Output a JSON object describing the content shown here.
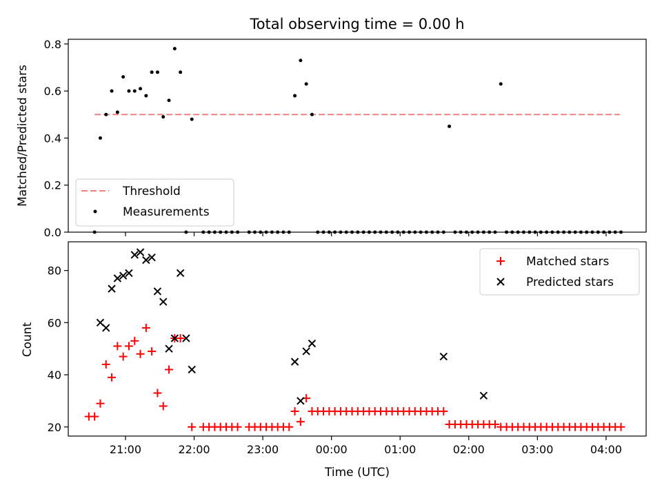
{
  "chart_data": [
    {
      "type": "scatter",
      "title": "Total observing time = 0.00 h",
      "xlabel": "",
      "ylabel": "Matched/Predicted stars",
      "xlim": [
        "20:10",
        "04:35"
      ],
      "ylim": [
        0,
        0.82
      ],
      "yticks": [
        0.0,
        0.2,
        0.4,
        0.6,
        0.8
      ],
      "ytick_labels": [
        "0.0",
        "0.2",
        "0.4",
        "0.6",
        "0.8"
      ],
      "legend": {
        "placement": "lower-left",
        "entries": [
          {
            "label": "Threshold",
            "style": "dashed-line",
            "color": "#f08080"
          },
          {
            "label": "Measurements",
            "style": "dot",
            "color": "#000000"
          }
        ]
      },
      "threshold": {
        "value": 0.5,
        "x_start": "20:33",
        "x_end": "04:12"
      },
      "series": [
        {
          "name": "Measurements",
          "color": "#000000",
          "x": [
            "20:33",
            "20:38",
            "20:43",
            "20:48",
            "20:53",
            "20:58",
            "21:03",
            "21:08",
            "21:13",
            "21:18",
            "21:23",
            "21:28",
            "21:33",
            "21:38",
            "21:43",
            "21:48",
            "21:53",
            "21:58",
            "22:08",
            "22:13",
            "22:18",
            "22:23",
            "22:28",
            "22:33",
            "22:38",
            "22:48",
            "22:53",
            "22:58",
            "23:03",
            "23:08",
            "23:13",
            "23:18",
            "23:23",
            "23:28",
            "23:33",
            "23:38",
            "23:43",
            "23:48",
            "23:53",
            "23:58",
            "00:03",
            "00:08",
            "00:13",
            "00:18",
            "00:23",
            "00:28",
            "00:33",
            "00:38",
            "00:43",
            "00:48",
            "00:53",
            "00:58",
            "01:03",
            "01:08",
            "01:13",
            "01:18",
            "01:23",
            "01:28",
            "01:33",
            "01:38",
            "01:43",
            "01:48",
            "01:53",
            "01:58",
            "02:03",
            "02:08",
            "02:13",
            "02:18",
            "02:23",
            "02:28",
            "02:33",
            "02:38",
            "02:43",
            "02:48",
            "02:53",
            "02:58",
            "03:03",
            "03:08",
            "03:13",
            "03:18",
            "03:23",
            "03:28",
            "03:33",
            "03:38",
            "03:43",
            "03:48",
            "03:53",
            "03:58",
            "04:03",
            "04:08",
            "04:13"
          ],
          "y": [
            0,
            0.4,
            0.5,
            0.6,
            0.51,
            0.66,
            0.6,
            0.6,
            0.61,
            0.58,
            0.68,
            0.68,
            0.49,
            0.56,
            0.78,
            0.68,
            0,
            0.48,
            0,
            0,
            0,
            0,
            0,
            0,
            0,
            0,
            0,
            0,
            0,
            0,
            0,
            0,
            0,
            0.58,
            0.73,
            0.63,
            0.5,
            0,
            0,
            0,
            0,
            0,
            0,
            0,
            0,
            0,
            0,
            0,
            0,
            0,
            0,
            0,
            0,
            0,
            0,
            0,
            0,
            0,
            0,
            0,
            0.45,
            0,
            0,
            0,
            0,
            0,
            0,
            0,
            0,
            0.63,
            0,
            0,
            0,
            0,
            0,
            0,
            0,
            0,
            0,
            0,
            0,
            0,
            0,
            0,
            0,
            0,
            0,
            0,
            0,
            0,
            0
          ]
        }
      ]
    },
    {
      "type": "scatter",
      "title": "",
      "xlabel": "Time (UTC)",
      "ylabel": "Count",
      "xlim": [
        "20:10",
        "04:35"
      ],
      "ylim": [
        16.5,
        91
      ],
      "yticks": [
        20,
        40,
        60,
        80
      ],
      "ytick_labels": [
        "20",
        "40",
        "60",
        "80"
      ],
      "xticks": [
        "21:00",
        "22:00",
        "23:00",
        "00:00",
        "01:00",
        "02:00",
        "03:00",
        "04:00"
      ],
      "legend": {
        "placement": "upper-right",
        "entries": [
          {
            "label": "Matched stars",
            "style": "plus",
            "color": "#ff0000"
          },
          {
            "label": "Predicted stars",
            "style": "cross",
            "color": "#000000"
          }
        ]
      },
      "series": [
        {
          "name": "Matched stars",
          "marker": "plus",
          "color": "#ff0000",
          "x": [
            "20:28",
            "20:33",
            "20:38",
            "20:43",
            "20:48",
            "20:53",
            "20:58",
            "21:03",
            "21:08",
            "21:13",
            "21:18",
            "21:23",
            "21:28",
            "21:33",
            "21:38",
            "21:43",
            "21:48",
            "21:58",
            "22:08",
            "22:13",
            "22:18",
            "22:23",
            "22:28",
            "22:33",
            "22:38",
            "22:48",
            "22:53",
            "22:58",
            "23:03",
            "23:08",
            "23:13",
            "23:18",
            "23:23",
            "23:28",
            "23:33",
            "23:38",
            "23:43",
            "23:48",
            "23:53",
            "23:58",
            "00:03",
            "00:08",
            "00:13",
            "00:18",
            "00:23",
            "00:28",
            "00:33",
            "00:38",
            "00:43",
            "00:48",
            "00:53",
            "00:58",
            "01:03",
            "01:08",
            "01:13",
            "01:18",
            "01:23",
            "01:28",
            "01:33",
            "01:38",
            "01:43",
            "01:48",
            "01:53",
            "01:58",
            "02:03",
            "02:08",
            "02:13",
            "02:18",
            "02:23",
            "02:28",
            "02:33",
            "02:38",
            "02:43",
            "02:48",
            "02:53",
            "02:58",
            "03:03",
            "03:08",
            "03:13",
            "03:18",
            "03:23",
            "03:28",
            "03:33",
            "03:38",
            "03:43",
            "03:48",
            "03:53",
            "03:58",
            "04:03",
            "04:08",
            "04:13"
          ],
          "y": [
            24,
            24,
            29,
            44,
            39,
            51,
            47,
            51,
            53,
            48,
            58,
            49,
            33,
            28,
            42,
            54,
            54,
            20,
            20,
            20,
            20,
            20,
            20,
            20,
            20,
            20,
            20,
            20,
            20,
            20,
            20,
            20,
            20,
            26,
            22,
            31,
            26,
            26,
            26,
            26,
            26,
            26,
            26,
            26,
            26,
            26,
            26,
            26,
            26,
            26,
            26,
            26,
            26,
            26,
            26,
            26,
            26,
            26,
            26,
            26,
            21,
            21,
            21,
            21,
            21,
            21,
            21,
            21,
            21,
            20,
            20,
            20,
            20,
            20,
            20,
            20,
            20,
            20,
            20,
            20,
            20,
            20,
            20,
            20,
            20,
            20,
            20,
            20,
            20,
            20,
            20
          ]
        },
        {
          "name": "Predicted stars",
          "marker": "cross",
          "color": "#000000",
          "x": [
            "20:38",
            "20:43",
            "20:48",
            "20:53",
            "20:58",
            "21:03",
            "21:08",
            "21:13",
            "21:18",
            "21:23",
            "21:28",
            "21:33",
            "21:38",
            "21:43",
            "21:48",
            "21:53",
            "21:58",
            "23:28",
            "23:33",
            "23:38",
            "23:43",
            "01:38",
            "02:13"
          ],
          "y": [
            60,
            58,
            73,
            77,
            78,
            79,
            86,
            87,
            84,
            85,
            72,
            68,
            50,
            54,
            79,
            54,
            42,
            45,
            30,
            49,
            52,
            47,
            32
          ]
        }
      ]
    }
  ]
}
